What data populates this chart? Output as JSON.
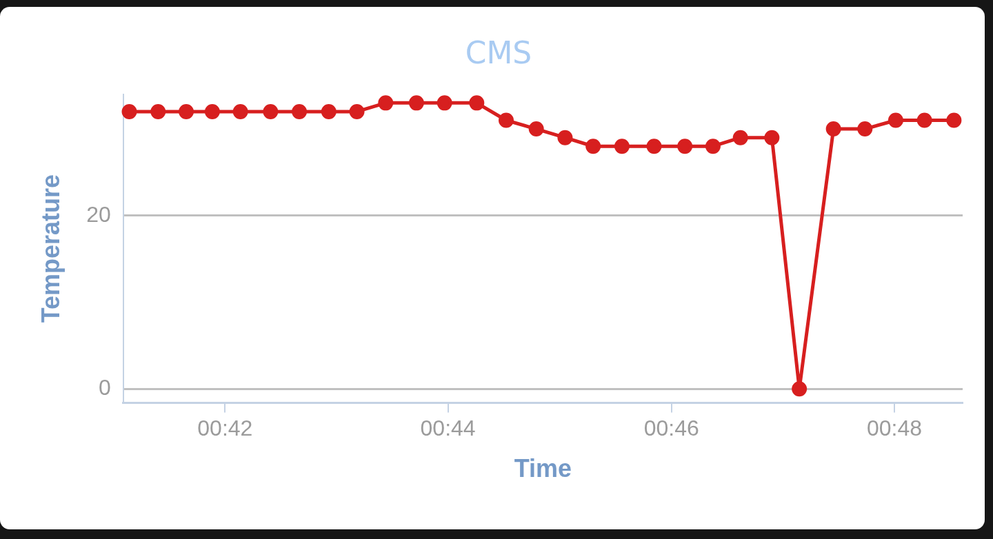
{
  "chart_data": {
    "type": "line",
    "title": "CMS",
    "xlabel": "Time",
    "ylabel": "Temperature",
    "x": [
      0.6857,
      0.69,
      0.6942,
      0.6981,
      0.7023,
      0.7068,
      0.7111,
      0.7155,
      0.7197,
      0.724,
      0.7286,
      0.7328,
      0.7376,
      0.742,
      0.7465,
      0.7508,
      0.755,
      0.7593,
      0.7641,
      0.7687,
      0.7729,
      0.777,
      0.7817,
      0.7858,
      0.7909,
      0.7956,
      0.8002,
      0.8045,
      0.8089
    ],
    "series": [
      {
        "color": "#d71f1f",
        "values": [
          32,
          32,
          32,
          32,
          32,
          32,
          32,
          32,
          32,
          33,
          33,
          33,
          33,
          31,
          30,
          29,
          28,
          28,
          28,
          28,
          28,
          29,
          29,
          0,
          30,
          30,
          31,
          31,
          31
        ]
      }
    ],
    "xlim": [
      0.6848,
      0.8102
    ],
    "xticks": [
      {
        "value": 0.7,
        "label": "00:42"
      },
      {
        "value": 0.7333,
        "label": "00:44"
      },
      {
        "value": 0.7667,
        "label": "00:46"
      },
      {
        "value": 0.8,
        "label": "00:48"
      }
    ],
    "ylim": [
      -1.6,
      34
    ],
    "yticks": [
      0,
      20
    ],
    "grid": "y",
    "legend": false,
    "marker": "circle",
    "line_style": "solid"
  }
}
